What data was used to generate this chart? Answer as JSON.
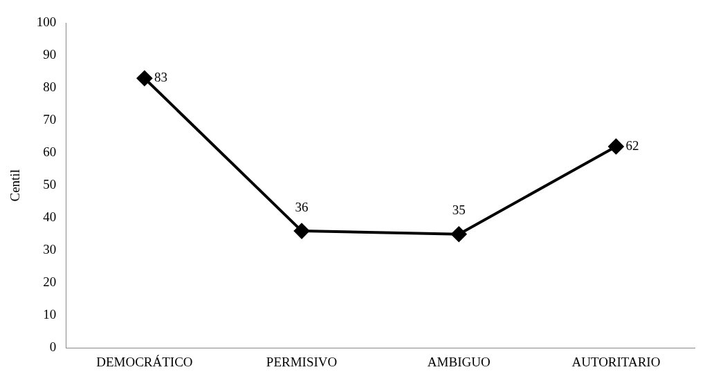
{
  "chart_data": {
    "type": "line",
    "ylabel": "Centil",
    "categories": [
      "DEMOCRÁTICO",
      "PERMISIVO",
      "AMBIGUO",
      "AUTORITARIO"
    ],
    "series": [
      {
        "color": "#000000",
        "values": [
          83,
          36,
          35,
          62
        ]
      }
    ],
    "ylim": [
      0,
      100
    ],
    "yticks": [
      0,
      10,
      20,
      30,
      40,
      50,
      60,
      70,
      80,
      90,
      100
    ],
    "grid": false,
    "legend": false,
    "marker": "diamond",
    "line_style": "solid",
    "data_labels": true
  }
}
